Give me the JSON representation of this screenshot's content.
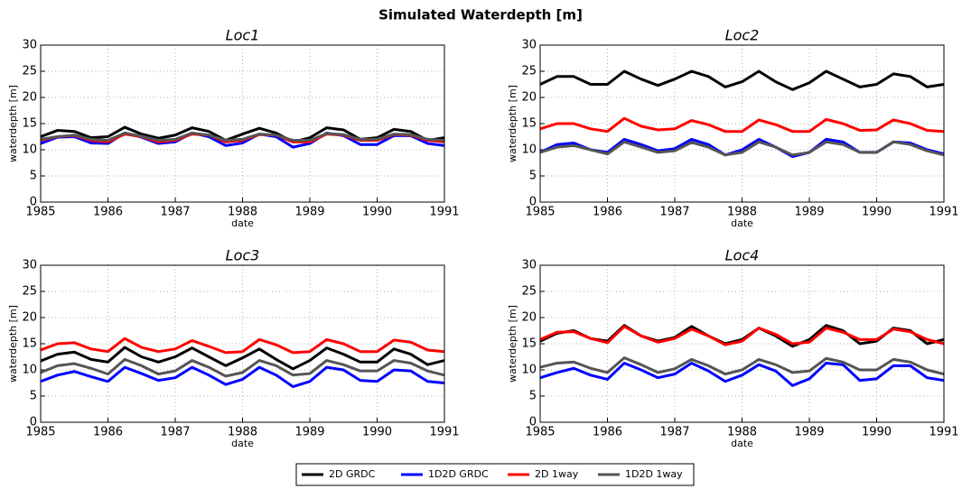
{
  "title": "Simulated Waterdepth [m]",
  "chart_data": [
    {
      "type": "line",
      "title": "Loc1",
      "xlabel": "date",
      "ylabel": "waterdepth [m]",
      "xlim": [
        1985,
        1991
      ],
      "xticks": [
        1985,
        1986,
        1987,
        1988,
        1989,
        1990,
        1991
      ],
      "ylim": [
        0,
        30
      ],
      "yticks": [
        0,
        5,
        10,
        15,
        20,
        25,
        30
      ],
      "grid": true,
      "x": [
        1985,
        1985.25,
        1985.5,
        1985.75,
        1986,
        1986.25,
        1986.5,
        1986.75,
        1987,
        1987.25,
        1987.5,
        1987.75,
        1988,
        1988.25,
        1988.5,
        1988.75,
        1989,
        1989.25,
        1989.5,
        1989.75,
        1990,
        1990.25,
        1990.5,
        1990.75,
        1991
      ],
      "series": [
        {
          "name": "2D GRDC",
          "color": "#000000",
          "values": [
            12.5,
            13.7,
            13.5,
            12.3,
            12.5,
            14.3,
            13,
            12.2,
            12.8,
            14.2,
            13.5,
            11.8,
            13,
            14.1,
            13.2,
            11.5,
            12.3,
            14.2,
            13.8,
            12,
            12.3,
            13.9,
            13.5,
            11.8,
            12.3
          ]
        },
        {
          "name": "1D2D GRDC",
          "color": "#0000ff",
          "values": [
            11.2,
            12.4,
            12.5,
            11.3,
            11.2,
            13.2,
            12.4,
            11.2,
            11.5,
            13.2,
            12.5,
            10.8,
            11.3,
            13,
            12.5,
            10.5,
            11.2,
            13.2,
            12.7,
            11,
            11,
            12.7,
            12.7,
            11.2,
            10.8
          ]
        },
        {
          "name": "2D 1way",
          "color": "#ff0000",
          "values": [
            11.8,
            12.5,
            12.7,
            11.8,
            11.5,
            13,
            12.5,
            11.5,
            11.8,
            13,
            12.8,
            11.5,
            11.8,
            12.9,
            12.8,
            11.5,
            11.5,
            13,
            12.8,
            11.8,
            11.8,
            12.9,
            12.8,
            11.8,
            11.5
          ]
        },
        {
          "name": "1D2D 1way",
          "color": "#555555",
          "values": [
            12,
            12.5,
            12.8,
            12,
            11.8,
            13.2,
            12.6,
            11.8,
            12,
            13.2,
            12.8,
            11.8,
            12,
            13,
            12.8,
            11.8,
            11.8,
            13.1,
            12.9,
            12,
            12,
            13,
            12.9,
            12,
            11.8
          ]
        }
      ]
    },
    {
      "type": "line",
      "title": "Loc2",
      "xlabel": "date",
      "ylabel": "waterdepth [m]",
      "xlim": [
        1985,
        1991
      ],
      "xticks": [
        1985,
        1986,
        1987,
        1988,
        1989,
        1990,
        1991
      ],
      "ylim": [
        0,
        30
      ],
      "yticks": [
        0,
        5,
        10,
        15,
        20,
        25,
        30
      ],
      "grid": true,
      "x": [
        1985,
        1985.25,
        1985.5,
        1985.75,
        1986,
        1986.25,
        1986.5,
        1986.75,
        1987,
        1987.25,
        1987.5,
        1987.75,
        1988,
        1988.25,
        1988.5,
        1988.75,
        1989,
        1989.25,
        1989.5,
        1989.75,
        1990,
        1990.25,
        1990.5,
        1990.75,
        1991
      ],
      "series": [
        {
          "name": "2D GRDC",
          "color": "#000000",
          "values": [
            22.5,
            24,
            24,
            22.5,
            22.5,
            25,
            23.5,
            22.3,
            23.5,
            25,
            24,
            22,
            23,
            25,
            23,
            21.5,
            22.8,
            25,
            23.5,
            22,
            22.5,
            24.5,
            24,
            22,
            22.5
          ]
        },
        {
          "name": "1D2D GRDC",
          "color": "#0000ff",
          "values": [
            9.5,
            11,
            11.3,
            10,
            9.5,
            12,
            11,
            9.8,
            10.2,
            12,
            11,
            9,
            10,
            12,
            10.5,
            8.7,
            9.5,
            12,
            11.5,
            9.5,
            9.5,
            11.5,
            11.3,
            10,
            9.2
          ]
        },
        {
          "name": "2D 1way",
          "color": "#ff0000",
          "values": [
            14,
            15,
            15,
            14,
            13.5,
            16,
            14.5,
            13.8,
            14,
            15.6,
            14.8,
            13.5,
            13.5,
            15.7,
            14.8,
            13.5,
            13.5,
            15.8,
            15,
            13.7,
            13.8,
            15.7,
            15,
            13.7,
            13.5
          ]
        },
        {
          "name": "1D2D 1way",
          "color": "#555555",
          "values": [
            9.5,
            10.5,
            10.8,
            10,
            9.2,
            11.5,
            10.5,
            9.5,
            9.8,
            11.4,
            10.5,
            9,
            9.5,
            11.5,
            10.5,
            9,
            9.5,
            11.5,
            11,
            9.5,
            9.5,
            11.5,
            11,
            9.8,
            9
          ]
        }
      ]
    },
    {
      "type": "line",
      "title": "Loc3",
      "xlabel": "date",
      "ylabel": "waterdepth [m]",
      "xlim": [
        1985,
        1991
      ],
      "xticks": [
        1985,
        1986,
        1987,
        1988,
        1989,
        1990,
        1991
      ],
      "ylim": [
        0,
        30
      ],
      "yticks": [
        0,
        5,
        10,
        15,
        20,
        25,
        30
      ],
      "grid": true,
      "x": [
        1985,
        1985.25,
        1985.5,
        1985.75,
        1986,
        1986.25,
        1986.5,
        1986.75,
        1987,
        1987.25,
        1987.5,
        1987.75,
        1988,
        1988.25,
        1988.5,
        1988.75,
        1989,
        1989.25,
        1989.5,
        1989.75,
        1990,
        1990.25,
        1990.5,
        1990.75,
        1991
      ],
      "series": [
        {
          "name": "2D GRDC",
          "color": "#000000",
          "values": [
            11.7,
            13,
            13.4,
            12,
            11.5,
            14.3,
            12.5,
            11.5,
            12.5,
            14.2,
            12.5,
            10.8,
            12.3,
            14,
            12,
            10.2,
            11.8,
            14.2,
            13,
            11.5,
            11.5,
            14,
            13,
            11,
            11.8
          ]
        },
        {
          "name": "1D2D GRDC",
          "color": "#0000ff",
          "values": [
            7.8,
            9,
            9.7,
            8.7,
            7.8,
            10.5,
            9.3,
            8,
            8.5,
            10.5,
            9,
            7.2,
            8.2,
            10.5,
            9,
            6.8,
            7.8,
            10.5,
            10,
            8,
            7.8,
            10,
            9.8,
            7.8,
            7.5
          ]
        },
        {
          "name": "2D 1way",
          "color": "#ff0000",
          "values": [
            13.8,
            15,
            15.2,
            14,
            13.5,
            16,
            14.3,
            13.5,
            14,
            15.6,
            14.5,
            13.3,
            13.5,
            15.8,
            14.8,
            13.3,
            13.5,
            15.8,
            15,
            13.5,
            13.5,
            15.7,
            15.3,
            13.8,
            13.5
          ]
        },
        {
          "name": "1D2D 1way",
          "color": "#555555",
          "values": [
            9.5,
            10.8,
            11.2,
            10.3,
            9.2,
            12,
            10.8,
            9.2,
            9.8,
            11.8,
            10.5,
            8.8,
            9.5,
            11.8,
            10.8,
            9,
            9.3,
            11.8,
            11,
            9.8,
            9.8,
            11.8,
            11.3,
            9.8,
            9
          ]
        }
      ]
    },
    {
      "type": "line",
      "title": "Loc4",
      "xlabel": "date",
      "ylabel": "waterdepth [m]",
      "xlim": [
        1985,
        1991
      ],
      "xticks": [
        1985,
        1986,
        1987,
        1988,
        1989,
        1990,
        1991
      ],
      "ylim": [
        0,
        30
      ],
      "yticks": [
        0,
        5,
        10,
        15,
        20,
        25,
        30
      ],
      "grid": true,
      "x": [
        1985,
        1985.25,
        1985.5,
        1985.75,
        1986,
        1986.25,
        1986.5,
        1986.75,
        1987,
        1987.25,
        1987.5,
        1987.75,
        1988,
        1988.25,
        1988.5,
        1988.75,
        1989,
        1989.25,
        1989.5,
        1989.75,
        1990,
        1990.25,
        1990.5,
        1990.75,
        1991
      ],
      "series": [
        {
          "name": "2D GRDC",
          "color": "#000000",
          "values": [
            15.5,
            17,
            17.5,
            16,
            15.5,
            18.5,
            16.5,
            15.5,
            16.2,
            18.3,
            16.5,
            15,
            15.8,
            18,
            16.5,
            14.5,
            15.8,
            18.5,
            17.5,
            15,
            15.5,
            18,
            17.5,
            15,
            15.8
          ]
        },
        {
          "name": "1D2D GRDC",
          "color": "#0000ff",
          "values": [
            8.5,
            9.5,
            10.3,
            9,
            8.2,
            11.3,
            10,
            8.5,
            9.2,
            11.3,
            9.8,
            7.8,
            9,
            11,
            9.8,
            7,
            8.3,
            11.3,
            11,
            8,
            8.3,
            10.8,
            10.8,
            8.5,
            8
          ]
        },
        {
          "name": "2D 1way",
          "color": "#ff0000",
          "values": [
            15.8,
            17.2,
            17.3,
            16,
            15.2,
            18.3,
            16.5,
            15.3,
            16,
            17.8,
            16.5,
            14.8,
            15.5,
            18,
            16.8,
            15,
            15.3,
            18,
            17.2,
            15.8,
            15.8,
            17.8,
            17.3,
            15.8,
            15
          ]
        },
        {
          "name": "1D2D 1way",
          "color": "#555555",
          "values": [
            10.5,
            11.3,
            11.5,
            10.3,
            9.5,
            12.3,
            11,
            9.5,
            10.2,
            12,
            10.8,
            9.2,
            10,
            12,
            11,
            9.5,
            9.8,
            12.2,
            11.5,
            10,
            10,
            12,
            11.5,
            10,
            9.2
          ]
        }
      ]
    }
  ]
}
